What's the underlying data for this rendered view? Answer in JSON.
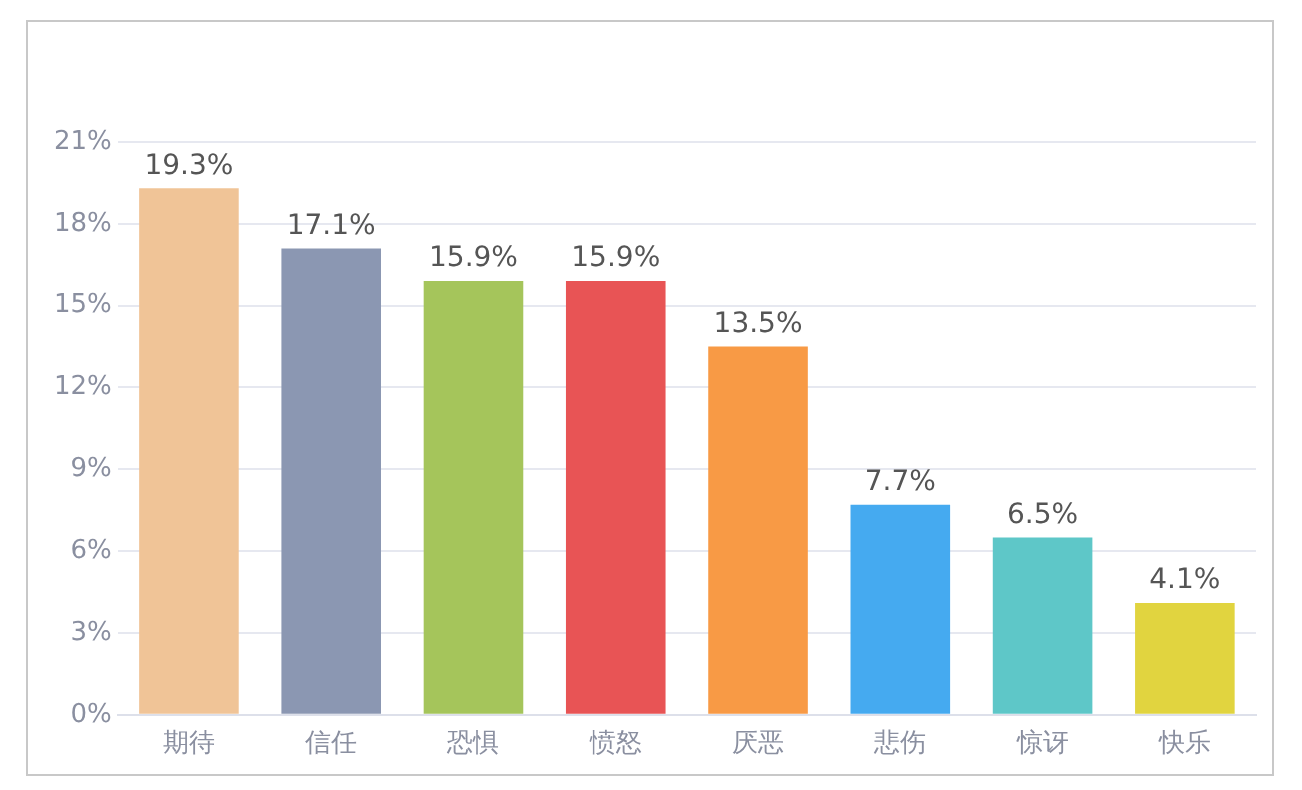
{
  "chart_data": {
    "type": "bar",
    "categories": [
      "期待",
      "信任",
      "恐惧",
      "愤怒",
      "厌恶",
      "悲伤",
      "惊讶",
      "快乐"
    ],
    "values": [
      19.3,
      17.1,
      15.9,
      15.9,
      13.5,
      7.7,
      6.5,
      4.1
    ],
    "colors": [
      "#f0c497",
      "#8b97b2",
      "#a5c55b",
      "#e85455",
      "#f89a45",
      "#45aaf0",
      "#5ec7c8",
      "#e1d43f"
    ],
    "value_labels": [
      "19.3%",
      "17.1%",
      "15.9%",
      "15.9%",
      "13.5%",
      "7.7%",
      "6.5%",
      "4.1%"
    ],
    "ylim": [
      0,
      21
    ],
    "yticks": [
      {
        "value": 0,
        "label": "0%"
      },
      {
        "value": 3,
        "label": "3%"
      },
      {
        "value": 6,
        "label": "6%"
      },
      {
        "value": 9,
        "label": "9%"
      },
      {
        "value": 12,
        "label": "12%"
      },
      {
        "value": 15,
        "label": "15%"
      },
      {
        "value": 18,
        "label": "18%"
      },
      {
        "value": 21,
        "label": "21%"
      }
    ],
    "grid": "y",
    "legend": false
  }
}
